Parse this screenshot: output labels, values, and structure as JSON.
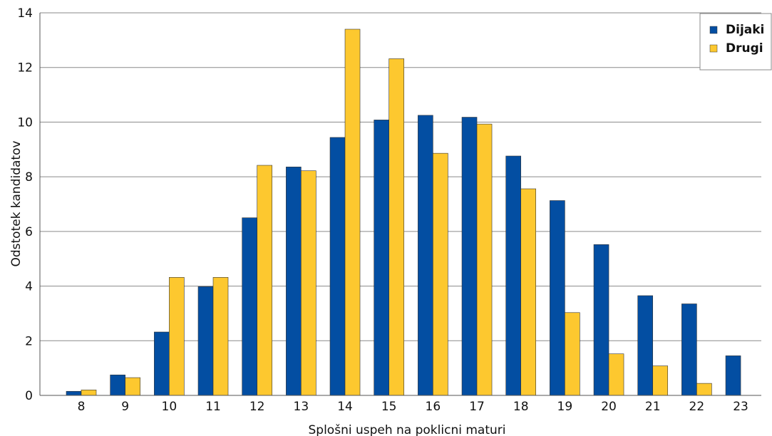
{
  "chart_data": {
    "type": "bar",
    "title": "",
    "xlabel": "Splošni uspeh na poklicni maturi",
    "ylabel": "Odstotek kandidatov",
    "ylim": [
      0,
      14
    ],
    "yticks": [
      "0",
      "2",
      "4",
      "6",
      "8",
      "10",
      "12",
      "14"
    ],
    "grid": true,
    "legend_position": "top-right",
    "categories": [
      "8",
      "9",
      "10",
      "11",
      "12",
      "13",
      "14",
      "15",
      "16",
      "17",
      "18",
      "19",
      "20",
      "21",
      "22",
      "23"
    ],
    "series": [
      {
        "name": "Dijaki",
        "color": "#034ea2",
        "values": [
          0.15,
          0.75,
          2.32,
          3.98,
          6.5,
          8.36,
          9.44,
          10.08,
          10.25,
          10.18,
          8.76,
          7.13,
          5.52,
          3.65,
          3.35,
          1.45
        ]
      },
      {
        "name": "Drugi",
        "color": "#fdc82f",
        "values": [
          0.2,
          0.65,
          4.32,
          4.32,
          8.42,
          8.22,
          13.4,
          12.32,
          8.86,
          9.93,
          7.56,
          3.03,
          1.52,
          1.08,
          0.44,
          0
        ]
      }
    ]
  }
}
